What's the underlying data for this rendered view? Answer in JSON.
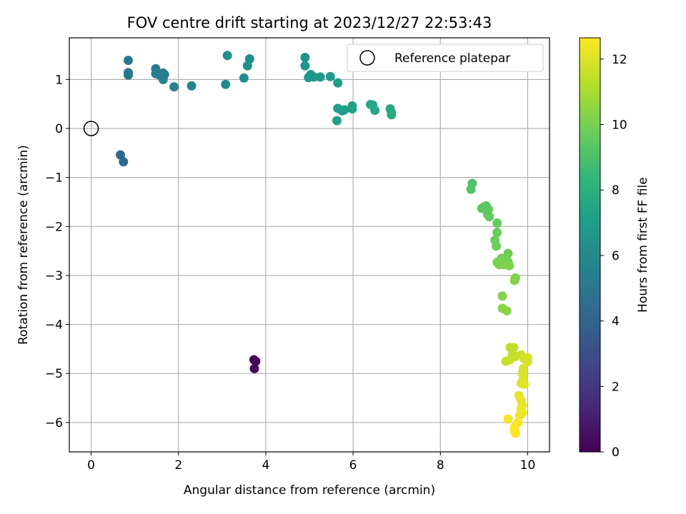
{
  "chart_data": {
    "type": "scatter",
    "title": "FOV centre drift starting at 2023/12/27 22:53:43",
    "xlabel": "Angular distance from reference (arcmin)",
    "ylabel": "Rotation from reference (arcmin)",
    "xlim": [
      -0.5,
      10.5
    ],
    "ylim": [
      -6.6,
      1.85
    ],
    "xticks": [
      0,
      2,
      4,
      6,
      8,
      10
    ],
    "yticks": [
      -6,
      -5,
      -4,
      -3,
      -2,
      -1,
      0,
      1
    ],
    "grid": true,
    "legend": {
      "placement": "upper right",
      "entries": [
        "Reference platepar"
      ]
    },
    "colorbar": {
      "label": "Hours from first FF file",
      "min": 0,
      "max": 12.65,
      "ticks": [
        0,
        2,
        4,
        6,
        8,
        10,
        12
      ],
      "colormap": "viridis"
    },
    "reference_point": {
      "x": 0,
      "y": 0
    },
    "points": [
      {
        "x": 3.73,
        "y": -4.72,
        "h": 0.1
      },
      {
        "x": 3.77,
        "y": -4.75,
        "h": 0.15
      },
      {
        "x": 3.74,
        "y": -4.9,
        "h": 0.2
      },
      {
        "x": 0.67,
        "y": -0.54,
        "h": 4.3
      },
      {
        "x": 0.74,
        "y": -0.68,
        "h": 4.4
      },
      {
        "x": 0.85,
        "y": 1.39,
        "h": 5.0
      },
      {
        "x": 0.85,
        "y": 1.14,
        "h": 5.05
      },
      {
        "x": 0.85,
        "y": 1.09,
        "h": 5.1
      },
      {
        "x": 1.48,
        "y": 1.22,
        "h": 5.2
      },
      {
        "x": 1.48,
        "y": 1.12,
        "h": 5.25
      },
      {
        "x": 1.55,
        "y": 1.1,
        "h": 5.3
      },
      {
        "x": 1.65,
        "y": 1.13,
        "h": 5.35
      },
      {
        "x": 1.68,
        "y": 1.1,
        "h": 5.4
      },
      {
        "x": 1.65,
        "y": 1.0,
        "h": 5.45
      },
      {
        "x": 1.9,
        "y": 0.85,
        "h": 5.6
      },
      {
        "x": 2.3,
        "y": 0.87,
        "h": 5.8
      },
      {
        "x": 3.08,
        "y": 0.9,
        "h": 6.0
      },
      {
        "x": 3.12,
        "y": 1.49,
        "h": 6.05
      },
      {
        "x": 3.5,
        "y": 1.03,
        "h": 6.1
      },
      {
        "x": 3.58,
        "y": 1.28,
        "h": 6.15
      },
      {
        "x": 3.63,
        "y": 1.42,
        "h": 6.2
      },
      {
        "x": 4.9,
        "y": 1.45,
        "h": 6.5
      },
      {
        "x": 4.9,
        "y": 1.28,
        "h": 6.55
      },
      {
        "x": 4.98,
        "y": 1.04,
        "h": 6.6
      },
      {
        "x": 5.03,
        "y": 1.1,
        "h": 6.65
      },
      {
        "x": 5.1,
        "y": 1.05,
        "h": 6.7
      },
      {
        "x": 5.25,
        "y": 1.05,
        "h": 6.75
      },
      {
        "x": 5.48,
        "y": 1.06,
        "h": 6.8
      },
      {
        "x": 5.65,
        "y": 0.93,
        "h": 6.9
      },
      {
        "x": 5.65,
        "y": 0.41,
        "h": 7.0
      },
      {
        "x": 5.75,
        "y": 0.36,
        "h": 7.05
      },
      {
        "x": 5.8,
        "y": 0.38,
        "h": 7.1
      },
      {
        "x": 5.63,
        "y": 0.16,
        "h": 7.15
      },
      {
        "x": 5.98,
        "y": 0.46,
        "h": 7.2
      },
      {
        "x": 5.98,
        "y": 0.4,
        "h": 7.25
      },
      {
        "x": 6.4,
        "y": 0.49,
        "h": 7.4
      },
      {
        "x": 6.45,
        "y": 0.48,
        "h": 7.45
      },
      {
        "x": 6.5,
        "y": 0.37,
        "h": 7.5
      },
      {
        "x": 6.85,
        "y": 0.4,
        "h": 7.6
      },
      {
        "x": 6.88,
        "y": 0.32,
        "h": 7.65
      },
      {
        "x": 6.88,
        "y": 0.28,
        "h": 7.7
      },
      {
        "x": 8.73,
        "y": -1.12,
        "h": 9.1
      },
      {
        "x": 8.7,
        "y": -1.24,
        "h": 9.15
      },
      {
        "x": 8.95,
        "y": -1.63,
        "h": 9.3
      },
      {
        "x": 9.0,
        "y": -1.6,
        "h": 9.35
      },
      {
        "x": 9.05,
        "y": -1.58,
        "h": 9.4
      },
      {
        "x": 9.1,
        "y": -1.65,
        "h": 9.45
      },
      {
        "x": 9.08,
        "y": -1.75,
        "h": 9.5
      },
      {
        "x": 9.12,
        "y": -1.8,
        "h": 9.55
      },
      {
        "x": 9.3,
        "y": -1.93,
        "h": 9.6
      },
      {
        "x": 9.3,
        "y": -2.12,
        "h": 9.65
      },
      {
        "x": 9.25,
        "y": -2.28,
        "h": 9.7
      },
      {
        "x": 9.28,
        "y": -2.4,
        "h": 9.75
      },
      {
        "x": 9.55,
        "y": -2.55,
        "h": 9.8
      },
      {
        "x": 9.5,
        "y": -2.65,
        "h": 9.85
      },
      {
        "x": 9.55,
        "y": -2.72,
        "h": 9.9
      },
      {
        "x": 9.4,
        "y": -2.65,
        "h": 9.95
      },
      {
        "x": 9.3,
        "y": -2.73,
        "h": 10.0
      },
      {
        "x": 9.35,
        "y": -2.78,
        "h": 10.05
      },
      {
        "x": 9.45,
        "y": -2.78,
        "h": 10.1
      },
      {
        "x": 9.58,
        "y": -2.8,
        "h": 10.15
      },
      {
        "x": 9.72,
        "y": -3.05,
        "h": 10.2
      },
      {
        "x": 9.7,
        "y": -3.1,
        "h": 10.25
      },
      {
        "x": 9.42,
        "y": -3.42,
        "h": 10.3
      },
      {
        "x": 9.42,
        "y": -3.67,
        "h": 10.35
      },
      {
        "x": 9.52,
        "y": -3.72,
        "h": 10.4
      },
      {
        "x": 9.6,
        "y": -4.47,
        "h": 11.4
      },
      {
        "x": 9.68,
        "y": -4.47,
        "h": 11.45
      },
      {
        "x": 9.65,
        "y": -4.62,
        "h": 11.5
      },
      {
        "x": 9.72,
        "y": -4.65,
        "h": 11.55
      },
      {
        "x": 9.5,
        "y": -4.75,
        "h": 11.6
      },
      {
        "x": 9.6,
        "y": -4.72,
        "h": 11.65
      },
      {
        "x": 9.85,
        "y": -4.62,
        "h": 11.7
      },
      {
        "x": 9.92,
        "y": -4.7,
        "h": 11.75
      },
      {
        "x": 10.0,
        "y": -4.68,
        "h": 11.8
      },
      {
        "x": 10.0,
        "y": -4.76,
        "h": 11.85
      },
      {
        "x": 9.9,
        "y": -4.9,
        "h": 11.9
      },
      {
        "x": 9.88,
        "y": -5.0,
        "h": 11.95
      },
      {
        "x": 9.9,
        "y": -5.1,
        "h": 12.0
      },
      {
        "x": 9.85,
        "y": -5.2,
        "h": 12.05
      },
      {
        "x": 9.92,
        "y": -5.22,
        "h": 12.1
      },
      {
        "x": 9.8,
        "y": -5.45,
        "h": 12.15
      },
      {
        "x": 9.85,
        "y": -5.55,
        "h": 12.2
      },
      {
        "x": 9.88,
        "y": -5.65,
        "h": 12.25
      },
      {
        "x": 9.85,
        "y": -5.72,
        "h": 12.3
      },
      {
        "x": 9.82,
        "y": -5.85,
        "h": 12.35
      },
      {
        "x": 9.88,
        "y": -5.8,
        "h": 12.4
      },
      {
        "x": 9.55,
        "y": -5.93,
        "h": 12.45
      },
      {
        "x": 9.78,
        "y": -6.0,
        "h": 12.5
      },
      {
        "x": 9.7,
        "y": -6.1,
        "h": 12.55
      },
      {
        "x": 9.7,
        "y": -6.18,
        "h": 12.6
      },
      {
        "x": 9.72,
        "y": -6.22,
        "h": 12.65
      }
    ]
  }
}
